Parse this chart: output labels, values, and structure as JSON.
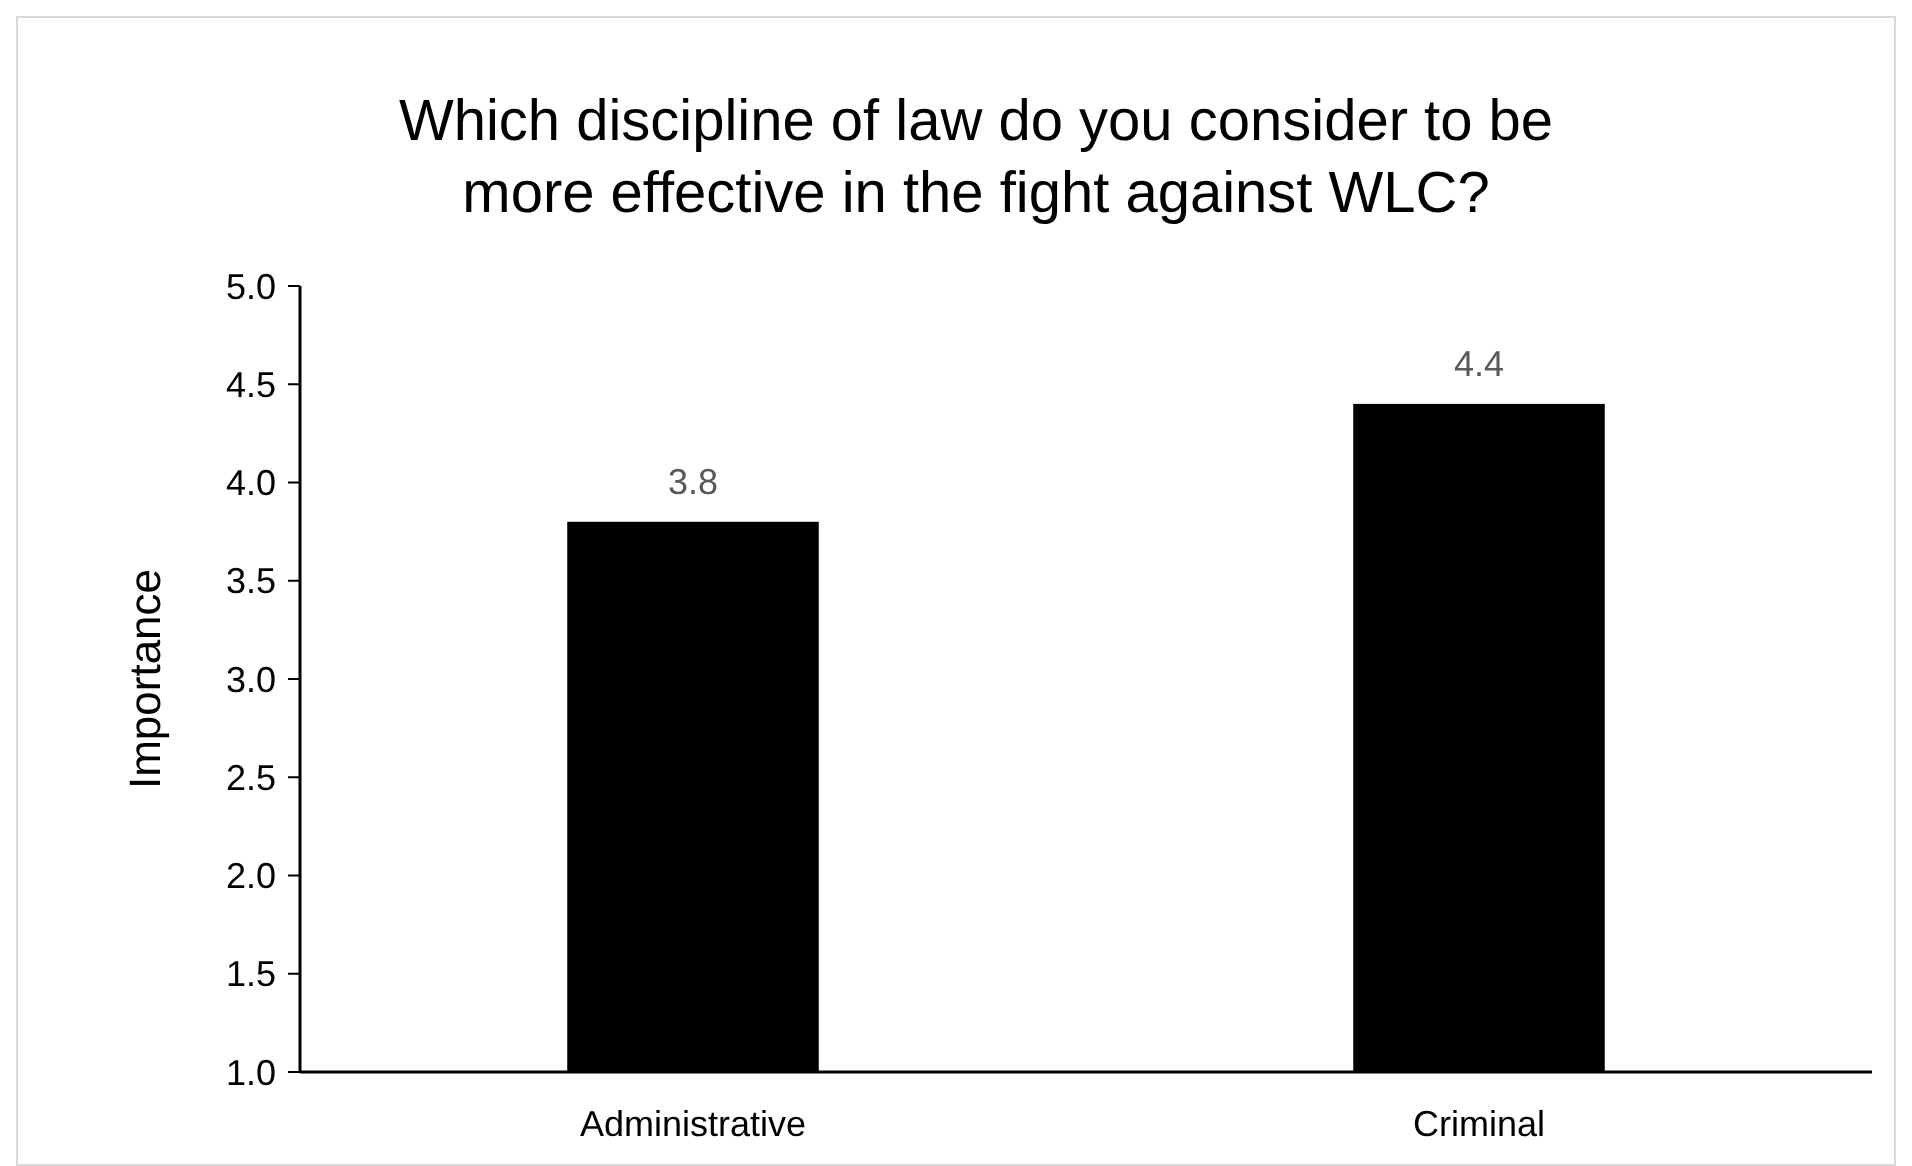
{
  "chart_data": {
    "type": "bar",
    "title": "Which discipline of law do you consider to be more effective in the fight against WLC?",
    "ylabel": "Importance",
    "categories": [
      "Administrative",
      "Criminal"
    ],
    "values": [
      3.8,
      4.4
    ],
    "color": "#000000",
    "ylim": [
      1,
      5
    ],
    "yticks": [
      {
        "value": 1,
        "label": "1.0"
      },
      {
        "value": 1.5,
        "label": "1.5"
      },
      {
        "value": 2,
        "label": "2.0"
      },
      {
        "value": 2.5,
        "label": "2.5"
      },
      {
        "value": 3,
        "label": "3.0"
      },
      {
        "value": 3.5,
        "label": "3.5"
      },
      {
        "value": 4,
        "label": "4.0"
      },
      {
        "value": 4.5,
        "label": "4.5"
      },
      {
        "value": 5,
        "label": "5.0"
      }
    ],
    "data_labels": true
  }
}
